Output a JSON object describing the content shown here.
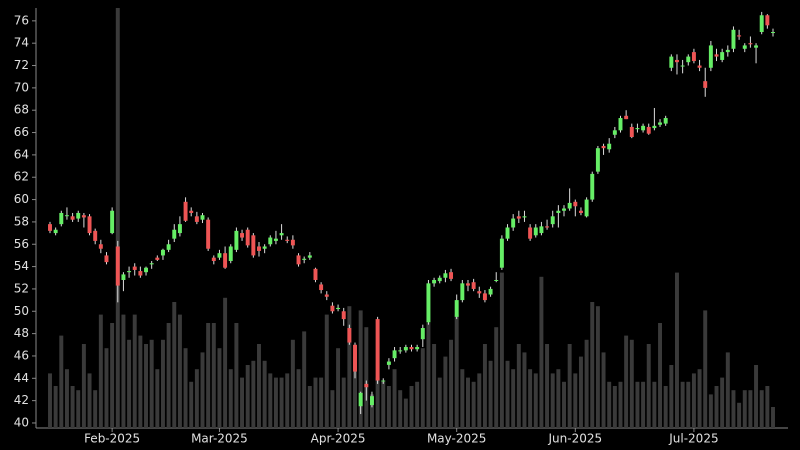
{
  "chart_data": {
    "type": "candlestick",
    "categories": [
      null,
      null,
      null,
      null,
      null,
      null,
      null,
      null,
      null,
      null,
      null,
      "Feb-2025",
      null,
      null,
      null,
      null,
      null,
      null,
      null,
      null,
      null,
      null,
      null,
      null,
      null,
      null,
      null,
      null,
      null,
      null,
      "Mar-2025",
      null,
      null,
      null,
      null,
      null,
      null,
      null,
      null,
      null,
      null,
      null,
      null,
      null,
      null,
      null,
      null,
      null,
      null,
      null,
      null,
      "Apr-2025",
      null,
      null,
      null,
      null,
      null,
      null,
      null,
      null,
      null,
      null,
      null,
      null,
      null,
      null,
      null,
      null,
      null,
      null,
      null,
      null,
      "May-2025",
      null,
      null,
      null,
      null,
      null,
      null,
      null,
      null,
      null,
      null,
      null,
      null,
      null,
      null,
      null,
      null,
      null,
      null,
      null,
      null,
      "Jun-2025",
      null,
      null,
      null,
      null,
      null,
      null,
      null,
      null,
      null,
      null,
      null,
      null,
      null,
      null,
      null,
      null,
      null,
      null,
      null,
      null,
      "Jul-2025",
      null,
      null,
      null,
      null,
      null,
      null,
      null,
      null,
      null,
      null,
      null,
      null,
      null,
      null
    ],
    "open": [
      57.8,
      57.0,
      57.8,
      58.6,
      58.5,
      58.3,
      58.6,
      58.5,
      57.2,
      56.0,
      55.0,
      57.0,
      55.8,
      52.8,
      53.5,
      54.0,
      53.6,
      53.5,
      54.2,
      54.8,
      55.0,
      55.5,
      56.5,
      57.0,
      59.8,
      59.0,
      58.5,
      58.2,
      58.2,
      54.8,
      54.8,
      55.2,
      54.5,
      55.5,
      57.0,
      57.3,
      56.8,
      55.8,
      55.6,
      56.0,
      56.3,
      56.8,
      56.4,
      56.4,
      55.0,
      54.6,
      54.8,
      53.8,
      52.4,
      51.5,
      50.5,
      50.2,
      50.0,
      48.5,
      47.0,
      41.5,
      43.5,
      41.6,
      49.3,
      43.8,
      45.2,
      45.8,
      46.5,
      46.5,
      46.8,
      46.6,
      47.5,
      49.0,
      52.5,
      52.7,
      53.0,
      53.5,
      49.5,
      51.0,
      52.5,
      52.6,
      51.8,
      51.6,
      51.5,
      52.8,
      53.9,
      56.5,
      57.5,
      58.5,
      58.4,
      57.5,
      56.8,
      57.0,
      57.6,
      57.8,
      58.8,
      59.0,
      59.2,
      59.8,
      59.0,
      58.5,
      60.0,
      62.5,
      64.8,
      64.5,
      65.8,
      66.2,
      67.5,
      66.5,
      66.3,
      66.2,
      66.5,
      66.4,
      66.7,
      66.8,
      71.8,
      72.5,
      72.0,
      72.3,
      73.2,
      72.0,
      70.6,
      71.8,
      73.0,
      72.5,
      73.2,
      73.5,
      74.7,
      73.5,
      74.0,
      73.6,
      75.0,
      76.5,
      75.0
    ],
    "high": [
      58.0,
      57.5,
      59.0,
      59.3,
      58.8,
      59.0,
      58.8,
      58.7,
      57.4,
      56.4,
      55.3,
      59.3,
      56.3,
      53.5,
      54.0,
      54.3,
      54.0,
      54.0,
      54.5,
      55.0,
      55.6,
      56.4,
      57.8,
      58.5,
      60.2,
      59.3,
      58.9,
      58.8,
      58.4,
      55.0,
      55.5,
      55.8,
      56.0,
      57.5,
      57.3,
      57.5,
      57.0,
      56.2,
      56.0,
      56.8,
      57.2,
      57.8,
      56.7,
      56.8,
      55.2,
      54.9,
      55.3,
      53.9,
      52.6,
      51.8,
      50.8,
      50.6,
      50.3,
      48.8,
      47.2,
      42.8,
      43.8,
      42.8,
      49.5,
      44.0,
      45.8,
      46.8,
      46.8,
      47.0,
      47.0,
      47.0,
      48.8,
      52.8,
      53.0,
      53.2,
      53.7,
      53.8,
      51.5,
      52.8,
      52.8,
      52.9,
      52.2,
      51.9,
      52.2,
      53.5,
      56.8,
      57.8,
      58.7,
      59.0,
      59.0,
      57.8,
      57.8,
      58.0,
      58.2,
      59.0,
      59.5,
      59.5,
      61.0,
      60.0,
      59.3,
      60.2,
      62.5,
      64.8,
      65.0,
      65.5,
      66.5,
      67.5,
      68.0,
      66.8,
      66.8,
      66.8,
      66.8,
      68.2,
      67.2,
      67.5,
      73.0,
      73.0,
      72.5,
      73.0,
      73.5,
      72.5,
      71.8,
      74.2,
      73.5,
      73.5,
      73.8,
      75.5,
      75.2,
      74.0,
      74.6,
      74.0,
      76.8,
      76.6,
      75.3
    ],
    "low": [
      57.0,
      56.8,
      57.6,
      58.2,
      58.0,
      58.0,
      57.5,
      56.8,
      56.0,
      55.2,
      54.2,
      56.9,
      50.8,
      51.8,
      53.0,
      53.2,
      53.0,
      53.2,
      53.8,
      54.5,
      54.6,
      55.3,
      56.2,
      56.7,
      58.0,
      58.5,
      57.8,
      57.9,
      55.4,
      54.2,
      54.6,
      53.8,
      54.3,
      55.3,
      56.3,
      55.7,
      54.8,
      54.9,
      55.2,
      55.8,
      56.0,
      56.4,
      56.1,
      55.6,
      54.0,
      54.3,
      54.6,
      52.6,
      51.6,
      51.0,
      49.8,
      50.0,
      48.7,
      47.0,
      44.0,
      40.8,
      42.0,
      41.4,
      43.5,
      43.5,
      44.8,
      45.5,
      46.2,
      46.3,
      46.4,
      46.4,
      46.8,
      48.8,
      52.2,
      52.5,
      52.6,
      52.7,
      49.3,
      50.8,
      51.8,
      51.8,
      51.2,
      50.8,
      51.3,
      52.6,
      53.7,
      56.3,
      57.2,
      57.9,
      58.0,
      56.3,
      56.6,
      56.8,
      57.3,
      57.5,
      57.5,
      58.5,
      59.0,
      58.5,
      58.6,
      58.4,
      59.8,
      62.3,
      64.0,
      64.2,
      65.5,
      66.0,
      67.2,
      65.5,
      66.0,
      66.0,
      65.8,
      66.2,
      66.5,
      66.6,
      71.5,
      71.2,
      71.3,
      72.0,
      72.2,
      71.5,
      69.2,
      71.5,
      72.4,
      72.3,
      72.8,
      73.2,
      74.3,
      73.2,
      73.6,
      72.2,
      74.8,
      75.3,
      74.6
    ],
    "close": [
      57.2,
      57.3,
      58.8,
      58.6,
      58.2,
      58.8,
      58.4,
      57.0,
      56.3,
      55.6,
      54.4,
      59.0,
      52.3,
      53.3,
      53.6,
      53.7,
      53.2,
      53.9,
      54.3,
      54.6,
      55.5,
      56.0,
      57.3,
      57.8,
      58.1,
      58.8,
      58.0,
      58.6,
      55.6,
      54.5,
      55.2,
      53.9,
      55.8,
      57.2,
      56.6,
      55.9,
      55.0,
      55.4,
      55.8,
      56.6,
      56.5,
      57.0,
      56.3,
      55.9,
      54.2,
      54.7,
      55.0,
      52.8,
      51.9,
      51.3,
      50.0,
      50.3,
      49.3,
      47.2,
      44.6,
      42.7,
      43.2,
      42.4,
      43.8,
      43.8,
      45.5,
      46.5,
      46.5,
      46.8,
      46.6,
      46.8,
      48.5,
      52.5,
      52.8,
      53.0,
      53.4,
      52.9,
      51.0,
      52.5,
      52.3,
      52.0,
      51.6,
      51.0,
      52.0,
      52.8,
      56.5,
      57.5,
      58.3,
      58.3,
      58.5,
      56.5,
      57.5,
      57.6,
      57.5,
      58.5,
      59.0,
      59.2,
      59.7,
      59.4,
      58.8,
      60.0,
      62.3,
      64.6,
      64.6,
      65.0,
      66.2,
      67.3,
      67.2,
      65.6,
      66.4,
      66.6,
      65.9,
      66.6,
      66.9,
      67.3,
      72.8,
      72.3,
      72.0,
      72.8,
      72.4,
      71.8,
      70.0,
      73.8,
      72.8,
      73.2,
      73.4,
      75.2,
      74.6,
      73.8,
      73.9,
      73.8,
      76.5,
      75.6,
      75.0
    ],
    "volume": [
      13,
      10,
      22,
      14,
      10,
      9,
      20,
      13,
      9,
      27,
      19,
      25,
      100,
      27,
      21,
      27,
      22,
      20,
      21,
      14,
      21,
      25,
      30,
      27,
      19,
      11,
      14,
      18,
      25,
      25,
      19,
      31,
      14,
      25,
      12,
      15,
      16,
      20,
      16,
      13,
      12,
      12,
      13,
      21,
      14,
      23,
      10,
      12,
      12,
      27,
      9,
      19,
      12,
      29,
      17,
      28,
      24,
      8,
      12,
      11,
      10,
      14,
      9,
      7,
      10,
      11,
      19,
      25,
      20,
      12,
      17,
      21,
      27,
      14,
      12,
      11,
      13,
      20,
      16,
      24,
      37,
      16,
      14,
      20,
      18,
      14,
      13,
      36,
      20,
      13,
      14,
      11,
      20,
      13,
      17,
      21,
      30,
      29,
      18,
      11,
      10,
      11,
      22,
      21,
      11,
      11,
      20,
      11,
      25,
      10,
      15,
      37,
      11,
      11,
      13,
      14,
      28,
      8,
      10,
      12,
      18,
      9,
      6,
      9,
      9,
      15,
      9,
      10,
      5
    ],
    "volume_lim": [
      0,
      100
    ],
    "ylim": [
      39.55,
      77.15
    ],
    "yticks": [
      40,
      42,
      44,
      46,
      48,
      50,
      52,
      54,
      56,
      58,
      60,
      62,
      64,
      66,
      68,
      70,
      72,
      74,
      76
    ],
    "up_color": "#66ee66",
    "down_color": "#ee5555",
    "volume_color": "#3a3a3a",
    "wick_color": "#dddddd"
  }
}
